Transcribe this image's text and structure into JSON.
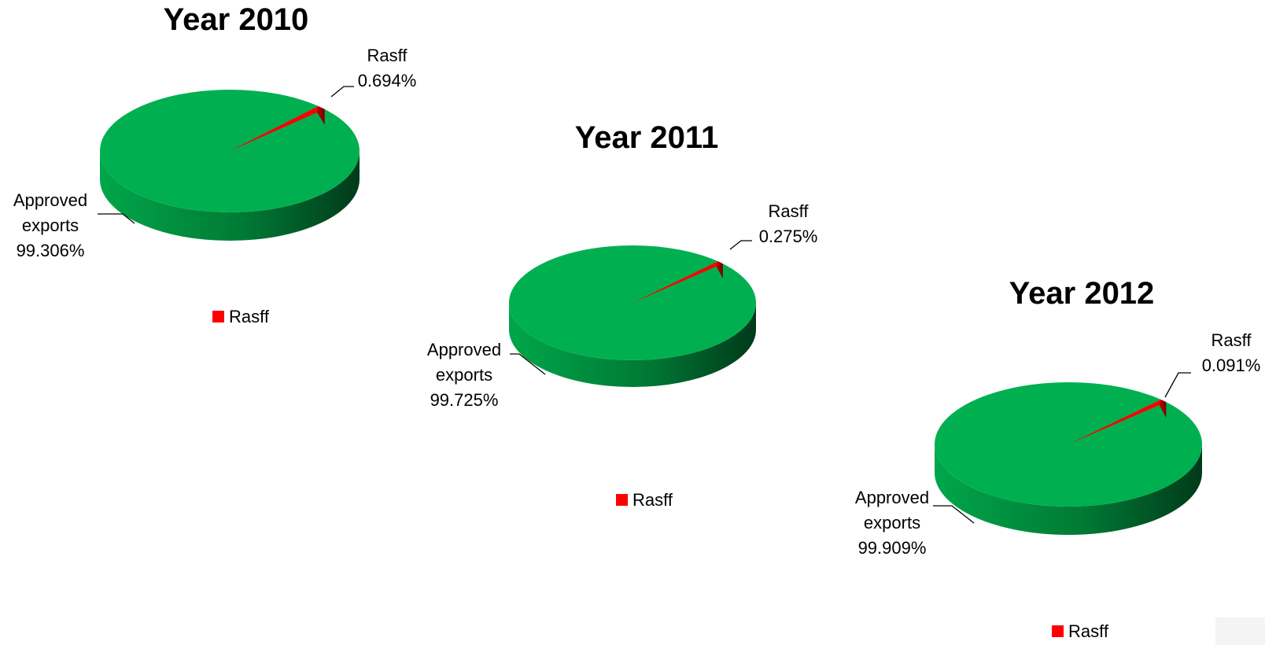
{
  "chart_data": [
    {
      "type": "pie",
      "title": "Year 2010",
      "slices": [
        {
          "name": "Approved exports",
          "value": 99.306,
          "value_label": "99.306%",
          "color": "#00B050"
        },
        {
          "name": "Rasff",
          "value": 0.694,
          "value_label": "0.694%",
          "color": "#FF0000"
        }
      ],
      "legend": [
        {
          "name": "Rasff",
          "color": "#FF0000"
        }
      ],
      "legend_position": "bottom"
    },
    {
      "type": "pie",
      "title": "Year 2011",
      "slices": [
        {
          "name": "Approved exports",
          "value": 99.725,
          "value_label": "99.725%",
          "color": "#00B050"
        },
        {
          "name": "Rasff",
          "value": 0.275,
          "value_label": "0.275%",
          "color": "#FF0000"
        }
      ],
      "legend": [
        {
          "name": "Rasff",
          "color": "#FF0000"
        }
      ],
      "legend_position": "bottom"
    },
    {
      "type": "pie",
      "title": "Year 2012",
      "slices": [
        {
          "name": "Approved exports",
          "value": 99.909,
          "value_label": "99.909%",
          "color": "#00B050"
        },
        {
          "name": "Rasff",
          "value": 0.091,
          "value_label": "0.091%",
          "color": "#FF0000"
        }
      ],
      "legend": [
        {
          "name": "Rasff",
          "color": "#FF0000"
        }
      ],
      "legend_position": "bottom"
    }
  ],
  "colors": {
    "approved": "#00B050",
    "rasff": "#FF0000",
    "approved_side_dark": "#00441F",
    "rasff_side_dark": "#8B0000"
  }
}
